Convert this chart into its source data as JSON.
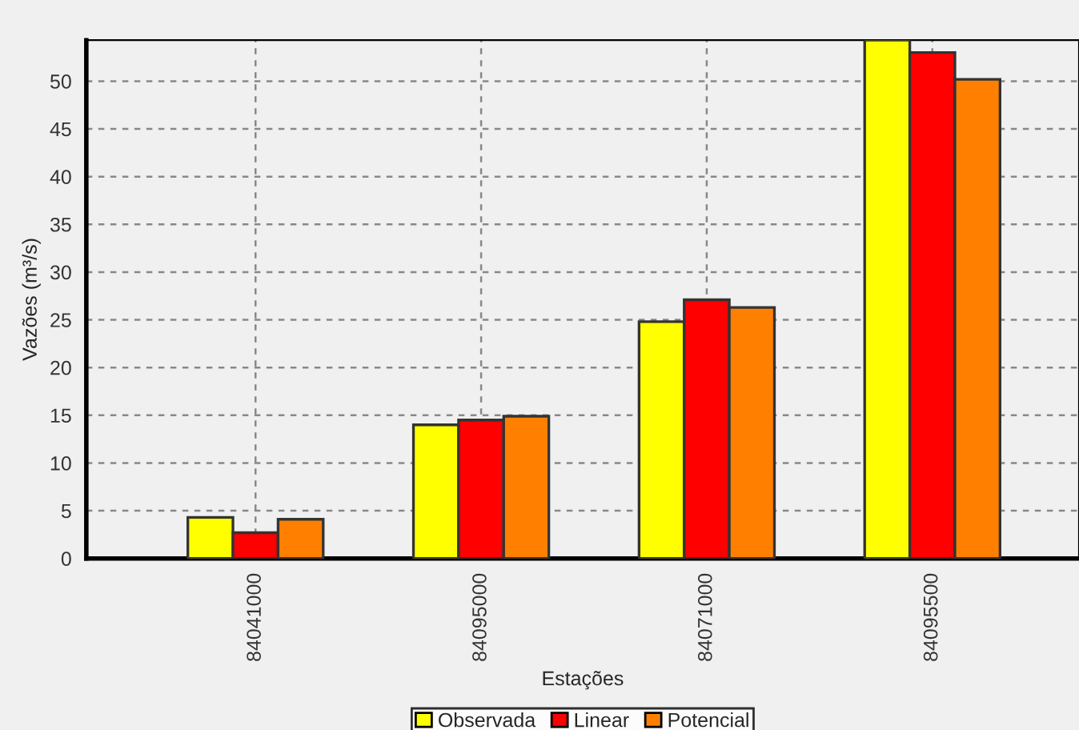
{
  "chart_data": {
    "type": "bar",
    "xlabel": "Estações",
    "ylabel": "Vazões (m³/s)",
    "categories": [
      "84041000",
      "84095000",
      "84071000",
      "84095500"
    ],
    "series": [
      {
        "name": "Observada",
        "color": "#ffff00",
        "values": [
          4.3,
          14.0,
          24.8,
          54.3
        ]
      },
      {
        "name": "Linear",
        "color": "#ff0000",
        "values": [
          2.7,
          14.5,
          27.1,
          53.0
        ]
      },
      {
        "name": "Potencial",
        "color": "#ff8000",
        "values": [
          4.1,
          14.9,
          26.3,
          50.2
        ]
      }
    ],
    "ylim": [
      0,
      54.3
    ],
    "yticks": [
      0,
      5,
      10,
      15,
      20,
      25,
      30,
      35,
      40,
      45,
      50
    ],
    "grid": true,
    "legend": "bottom"
  }
}
